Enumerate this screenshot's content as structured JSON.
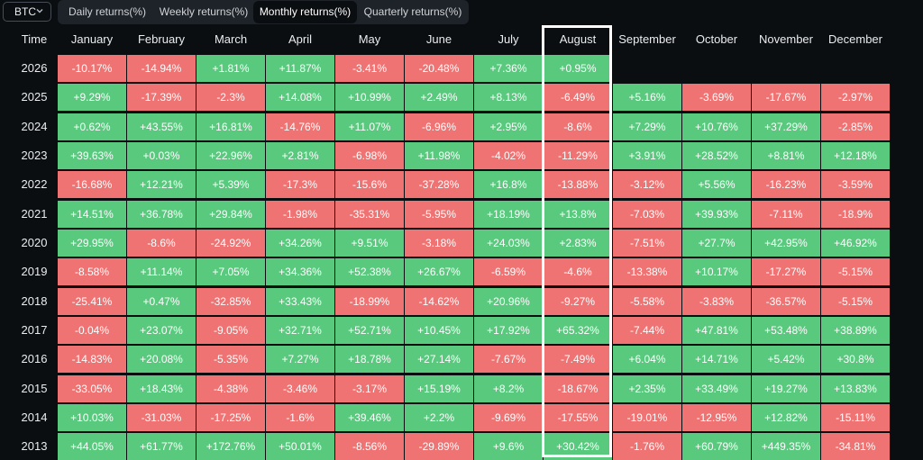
{
  "selector": {
    "coin": "BTC"
  },
  "tabs": [
    {
      "label": "Daily returns(%)",
      "active": false
    },
    {
      "label": "Weekly returns(%)",
      "active": false
    },
    {
      "label": "Monthly returns(%)",
      "active": true
    },
    {
      "label": "Quarterly returns(%)",
      "active": false
    }
  ],
  "table": {
    "time_header": "Time",
    "months": [
      "January",
      "February",
      "March",
      "April",
      "May",
      "June",
      "July",
      "August",
      "September",
      "October",
      "November",
      "December"
    ],
    "highlighted_month": "August",
    "rows": [
      {
        "year": "2026",
        "values": [
          "-10.17%",
          "-14.94%",
          "+1.81%",
          "+11.87%",
          "-3.41%",
          "-20.48%",
          "+7.36%",
          "+0.95%",
          "",
          "",
          "",
          ""
        ]
      },
      {
        "year": "2025",
        "values": [
          "+9.29%",
          "-17.39%",
          "-2.3%",
          "+14.08%",
          "+10.99%",
          "+2.49%",
          "+8.13%",
          "-6.49%",
          "+5.16%",
          "-3.69%",
          "-17.67%",
          "-2.97%"
        ]
      },
      {
        "year": "2024",
        "values": [
          "+0.62%",
          "+43.55%",
          "+16.81%",
          "-14.76%",
          "+11.07%",
          "-6.96%",
          "+2.95%",
          "-8.6%",
          "+7.29%",
          "+10.76%",
          "+37.29%",
          "-2.85%"
        ]
      },
      {
        "year": "2023",
        "values": [
          "+39.63%",
          "+0.03%",
          "+22.96%",
          "+2.81%",
          "-6.98%",
          "+11.98%",
          "-4.02%",
          "-11.29%",
          "+3.91%",
          "+28.52%",
          "+8.81%",
          "+12.18%"
        ]
      },
      {
        "year": "2022",
        "values": [
          "-16.68%",
          "+12.21%",
          "+5.39%",
          "-17.3%",
          "-15.6%",
          "-37.28%",
          "+16.8%",
          "-13.88%",
          "-3.12%",
          "+5.56%",
          "-16.23%",
          "-3.59%"
        ]
      },
      {
        "year": "2021",
        "values": [
          "+14.51%",
          "+36.78%",
          "+29.84%",
          "-1.98%",
          "-35.31%",
          "-5.95%",
          "+18.19%",
          "+13.8%",
          "-7.03%",
          "+39.93%",
          "-7.11%",
          "-18.9%"
        ]
      },
      {
        "year": "2020",
        "values": [
          "+29.95%",
          "-8.6%",
          "-24.92%",
          "+34.26%",
          "+9.51%",
          "-3.18%",
          "+24.03%",
          "+2.83%",
          "-7.51%",
          "+27.7%",
          "+42.95%",
          "+46.92%"
        ]
      },
      {
        "year": "2019",
        "values": [
          "-8.58%",
          "+11.14%",
          "+7.05%",
          "+34.36%",
          "+52.38%",
          "+26.67%",
          "-6.59%",
          "-4.6%",
          "-13.38%",
          "+10.17%",
          "-17.27%",
          "-5.15%"
        ]
      },
      {
        "year": "2018",
        "values": [
          "-25.41%",
          "+0.47%",
          "-32.85%",
          "+33.43%",
          "-18.99%",
          "-14.62%",
          "+20.96%",
          "-9.27%",
          "-5.58%",
          "-3.83%",
          "-36.57%",
          "-5.15%"
        ]
      },
      {
        "year": "2017",
        "values": [
          "-0.04%",
          "+23.07%",
          "-9.05%",
          "+32.71%",
          "+52.71%",
          "+10.45%",
          "+17.92%",
          "+65.32%",
          "-7.44%",
          "+47.81%",
          "+53.48%",
          "+38.89%"
        ]
      },
      {
        "year": "2016",
        "values": [
          "-14.83%",
          "+20.08%",
          "-5.35%",
          "+7.27%",
          "+18.78%",
          "+27.14%",
          "-7.67%",
          "-7.49%",
          "+6.04%",
          "+14.71%",
          "+5.42%",
          "+30.8%"
        ]
      },
      {
        "year": "2015",
        "values": [
          "-33.05%",
          "+18.43%",
          "-4.38%",
          "-3.46%",
          "-3.17%",
          "+15.19%",
          "+8.2%",
          "-18.67%",
          "+2.35%",
          "+33.49%",
          "+19.27%",
          "+13.83%"
        ]
      },
      {
        "year": "2014",
        "values": [
          "+10.03%",
          "-31.03%",
          "-17.25%",
          "-1.6%",
          "+39.46%",
          "+2.2%",
          "-9.69%",
          "-17.55%",
          "-19.01%",
          "-12.95%",
          "+12.82%",
          "-15.11%"
        ]
      },
      {
        "year": "2013",
        "values": [
          "+44.05%",
          "+61.77%",
          "+172.76%",
          "+50.01%",
          "-8.56%",
          "-29.89%",
          "+9.6%",
          "+30.42%",
          "-1.76%",
          "+60.79%",
          "+449.35%",
          "-34.81%"
        ]
      }
    ]
  },
  "colors": {
    "positive": "#59c97e",
    "negative": "#f07373",
    "background": "#0b0e11",
    "highlight_border": "#ffffff"
  }
}
